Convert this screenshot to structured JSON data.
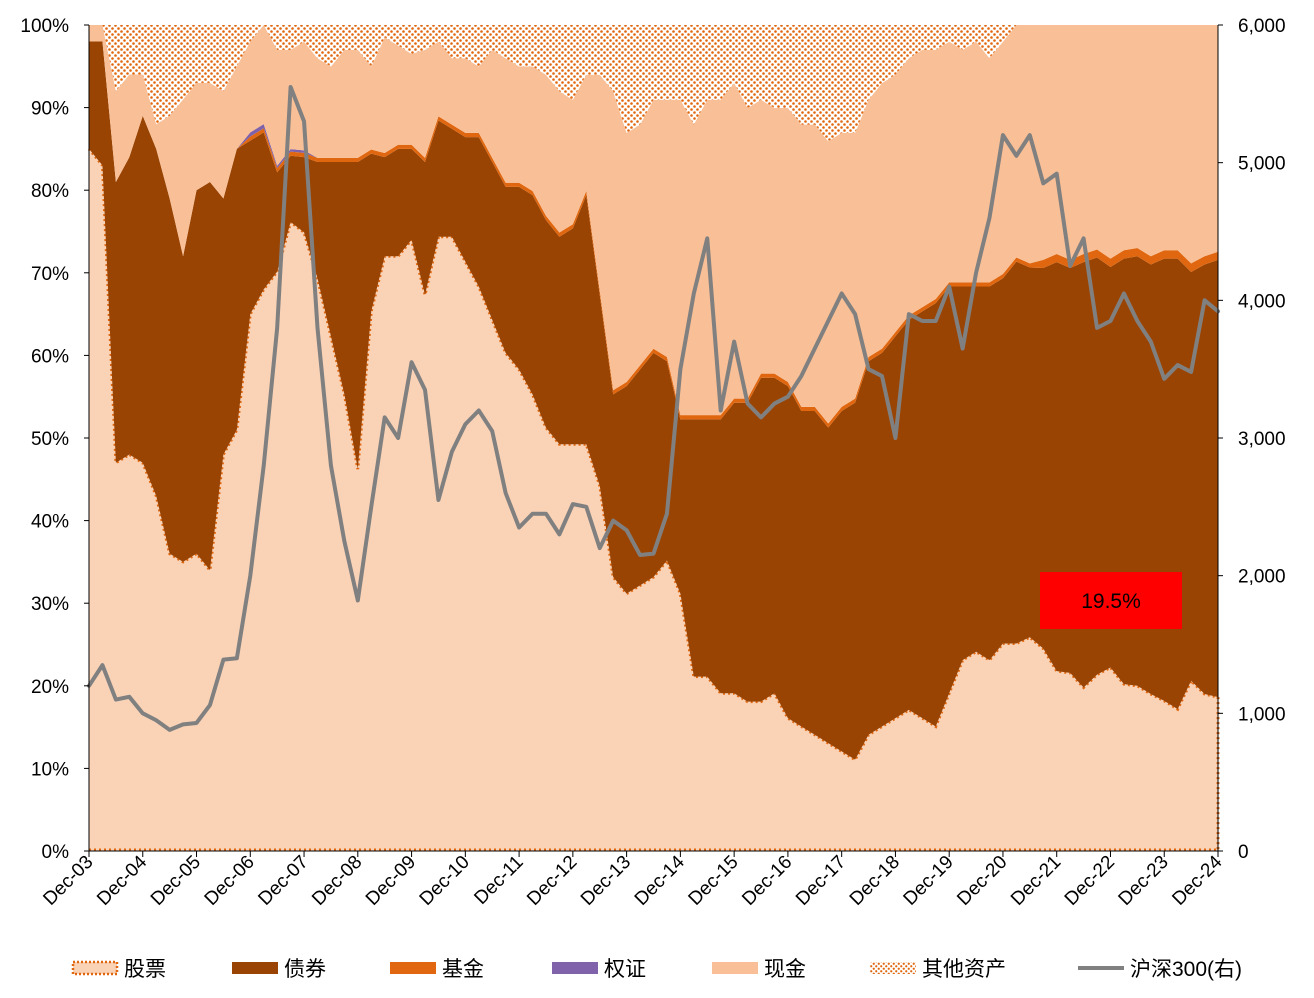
{
  "chart_data": {
    "type": "area",
    "stacked": true,
    "percent_stacked": true,
    "x": [
      "2003-12",
      "2004-03",
      "2004-06",
      "2004-09",
      "2004-12",
      "2005-03",
      "2005-06",
      "2005-09",
      "2005-12",
      "2006-03",
      "2006-06",
      "2006-09",
      "2006-12",
      "2007-03",
      "2007-06",
      "2007-09",
      "2007-12",
      "2008-03",
      "2008-06",
      "2008-09",
      "2008-12",
      "2009-03",
      "2009-06",
      "2009-09",
      "2009-12",
      "2010-03",
      "2010-06",
      "2010-09",
      "2010-12",
      "2011-03",
      "2011-06",
      "2011-09",
      "2011-12",
      "2012-03",
      "2012-06",
      "2012-09",
      "2012-12",
      "2013-03",
      "2013-06",
      "2013-09",
      "2013-12",
      "2014-03",
      "2014-06",
      "2014-09",
      "2014-12",
      "2015-03",
      "2015-06",
      "2015-09",
      "2015-12",
      "2016-03",
      "2016-06",
      "2016-09",
      "2016-12",
      "2017-03",
      "2017-06",
      "2017-09",
      "2017-12",
      "2018-03",
      "2018-06",
      "2018-09",
      "2018-12",
      "2019-03",
      "2019-06",
      "2019-09",
      "2019-12",
      "2020-03",
      "2020-06",
      "2020-09",
      "2020-12",
      "2021-03",
      "2021-06",
      "2021-09",
      "2021-12",
      "2022-03",
      "2022-06",
      "2022-09",
      "2022-12",
      "2023-03",
      "2023-06",
      "2023-09",
      "2023-12",
      "2024-03",
      "2024-06",
      "2024-09",
      "2024-12"
    ],
    "x_tick_labels": [
      "Dec-03",
      "Dec-04",
      "Dec-05",
      "Dec-06",
      "Dec-07",
      "Dec-08",
      "Dec-09",
      "Dec-10",
      "Dec-11",
      "Dec-12",
      "Dec-13",
      "Dec-14",
      "Dec-15",
      "Dec-16",
      "Dec-17",
      "Dec-18",
      "Dec-19",
      "Dec-20",
      "Dec-21",
      "Dec-22",
      "Dec-23",
      "Dec-24"
    ],
    "ylim": [
      0,
      100
    ],
    "y_tick_labels": [
      "0%",
      "10%",
      "20%",
      "30%",
      "40%",
      "50%",
      "60%",
      "70%",
      "80%",
      "90%",
      "100%"
    ],
    "y2lim": [
      0,
      6000
    ],
    "y2_tick_labels": [
      "0",
      "1,000",
      "2,000",
      "3,000",
      "4,000",
      "5,000",
      "6,000"
    ],
    "series": [
      {
        "name": "股票",
        "color": "#FAD3B7",
        "style": "dotted-outline",
        "values": [
          85,
          83,
          47,
          48,
          47,
          43,
          36,
          35,
          36,
          34,
          48,
          51,
          65,
          68,
          70,
          76,
          74,
          69,
          62,
          55,
          46,
          65,
          72,
          72,
          74,
          67,
          74,
          74,
          71,
          68,
          64,
          60,
          58,
          55,
          51,
          49,
          49,
          49,
          44,
          33,
          31,
          32,
          33,
          35,
          31,
          21,
          21,
          19,
          19,
          18,
          18,
          19,
          16,
          15,
          14,
          13,
          12,
          11,
          14,
          15,
          16,
          17,
          16,
          15,
          19,
          23,
          24,
          23,
          25,
          25,
          26,
          25,
          22,
          22,
          20,
          22,
          22,
          20,
          20,
          19,
          18,
          17,
          20,
          19,
          19
        ]
      },
      {
        "name": "债券",
        "color": "#9A4403",
        "values": [
          13,
          15,
          34,
          36,
          42,
          42,
          43,
          37,
          44,
          47,
          31,
          34,
          21,
          19,
          12,
          8,
          9,
          14,
          21,
          28,
          37,
          19,
          12,
          13,
          11,
          16,
          14,
          13,
          15,
          18,
          19,
          20,
          22,
          24,
          25,
          25,
          26,
          30,
          23,
          22,
          25,
          26,
          27,
          24,
          21,
          31,
          31,
          33,
          35,
          36,
          39,
          38,
          40,
          38,
          39,
          38,
          41,
          43,
          45,
          45,
          46,
          47,
          49,
          51,
          49,
          45,
          44,
          45,
          44,
          46,
          45,
          47,
          50,
          50,
          52,
          52,
          48,
          51,
          52,
          52,
          53,
          54,
          48,
          52,
          54
        ]
      },
      {
        "name": "基金",
        "color": "#E0670F",
        "values": [
          0,
          0,
          0,
          0,
          0,
          0,
          0,
          0,
          0,
          0,
          0,
          0,
          0.5,
          0.5,
          0.5,
          0.5,
          0.5,
          0.5,
          0.5,
          0.5,
          0.5,
          0.5,
          0.5,
          0.5,
          0.5,
          0.5,
          0.5,
          0.5,
          0.5,
          0.5,
          0.5,
          0.5,
          0.5,
          0.5,
          0.5,
          0.5,
          0.5,
          0.5,
          0.5,
          0.5,
          0.5,
          0.5,
          0.5,
          0.5,
          0.5,
          0.5,
          0.5,
          0.5,
          0.5,
          0.5,
          0.5,
          0.5,
          0.5,
          0.5,
          0.5,
          0.5,
          0.5,
          0.5,
          0.5,
          0.5,
          0.5,
          0.5,
          0.5,
          0.5,
          0.5,
          0.5,
          0.5,
          0.5,
          0.5,
          0.5,
          0.5,
          1,
          1,
          1,
          1,
          1,
          1,
          1,
          1,
          1,
          1,
          1,
          1,
          1,
          1
        ]
      },
      {
        "name": "权证",
        "color": "#7F62A9",
        "values": [
          0,
          0,
          0,
          0,
          0,
          0,
          0,
          0,
          0,
          0,
          0,
          0,
          0.5,
          0.5,
          0.3,
          0.3,
          0.3,
          0,
          0,
          0,
          0,
          0,
          0,
          0,
          0,
          0,
          0,
          0,
          0,
          0,
          0,
          0,
          0,
          0,
          0,
          0,
          0,
          0,
          0,
          0,
          0,
          0,
          0,
          0,
          0,
          0,
          0,
          0,
          0,
          0,
          0,
          0,
          0,
          0,
          0,
          0,
          0,
          0,
          0,
          0,
          0,
          0,
          0,
          0,
          0,
          0,
          0,
          0,
          0,
          0,
          0,
          0,
          0,
          0,
          0,
          0,
          0,
          0,
          0,
          0,
          0,
          0,
          0,
          0,
          0
        ]
      },
      {
        "name": "现金",
        "color": "#F9BF96",
        "values": [
          2,
          2,
          11,
          10,
          5,
          3,
          10,
          19,
          13,
          12,
          13,
          10,
          11,
          12,
          14,
          12,
          13,
          12,
          11,
          13,
          13,
          10,
          14,
          12,
          11,
          13,
          9,
          8,
          9,
          8,
          13,
          15,
          14,
          15,
          17,
          17,
          15,
          14,
          26,
          36,
          30,
          29,
          30,
          31,
          38,
          35,
          38,
          38,
          38,
          35,
          33,
          32,
          33,
          34,
          34,
          34,
          33,
          32,
          31,
          32,
          31,
          31,
          31,
          30,
          29,
          28,
          29,
          27,
          28,
          28,
          29,
          29,
          28,
          29,
          28,
          28,
          28,
          27,
          27,
          28,
          27,
          27,
          28,
          28,
          28
        ]
      },
      {
        "name": "其他资产",
        "color": "#E0670F",
        "style": "dotted",
        "values": [
          0,
          0,
          8,
          6,
          6,
          12,
          11,
          9,
          7,
          7,
          8,
          5,
          2,
          0,
          3,
          3,
          2,
          4,
          5,
          3,
          3,
          5,
          1.5,
          2.5,
          3.5,
          3,
          2,
          4,
          4,
          5,
          3,
          4,
          5,
          5,
          6,
          8,
          9,
          6,
          6,
          8,
          13,
          12,
          9,
          9,
          9,
          12,
          9,
          9,
          7,
          10,
          9,
          10,
          10,
          12,
          12,
          14,
          13,
          13,
          9,
          7,
          6,
          4,
          3,
          3,
          2,
          3,
          2,
          4,
          2,
          0,
          0,
          0,
          0,
          0,
          0,
          0,
          0,
          0,
          0,
          0,
          0,
          0,
          0,
          0,
          0
        ]
      },
      {
        "name": "沪深300(右)",
        "color": "#808080",
        "axis": "right",
        "type": "line",
        "values": [
          1200,
          1350,
          1100,
          1120,
          1000,
          950,
          880,
          920,
          930,
          1060,
          1390,
          1400,
          2000,
          2800,
          3800,
          5550,
          5300,
          3800,
          2800,
          2250,
          1820,
          2500,
          3150,
          3000,
          3550,
          3350,
          2550,
          2900,
          3100,
          3200,
          3050,
          2600,
          2350,
          2450,
          2450,
          2300,
          2520,
          2500,
          2200,
          2400,
          2330,
          2150,
          2160,
          2450,
          3500,
          4050,
          4450,
          3200,
          3700,
          3250,
          3150,
          3250,
          3300,
          3450,
          3650,
          3850,
          4050,
          3900,
          3500,
          3450,
          3000,
          3900,
          3850,
          3850,
          4100,
          3650,
          4200,
          4600,
          5200,
          5050,
          5200,
          4850,
          4920,
          4250,
          4450,
          3800,
          3850,
          4050,
          3850,
          3700,
          3430,
          3530,
          3480,
          4000,
          3920
        ]
      }
    ],
    "annotation": {
      "text": "19.5%",
      "color": "#FF0000"
    }
  }
}
